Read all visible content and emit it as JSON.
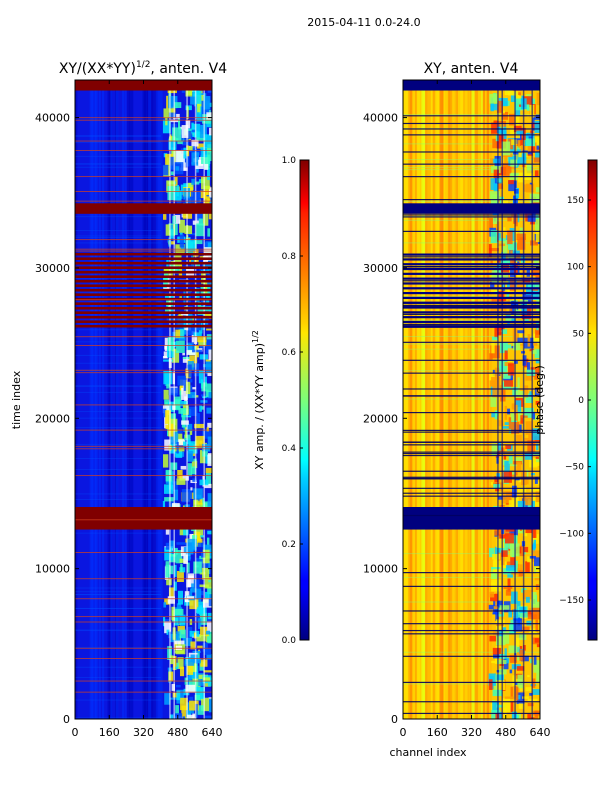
{
  "figure": {
    "suptitle": "2015-04-11 0.0-24.0"
  },
  "chart_data": [
    {
      "type": "heatmap",
      "title_main": "XY/(XX*YY)",
      "title_exp": "1/2",
      "title_tail": ", anten. V4",
      "xlabel": "",
      "ylabel": "time index",
      "xlim": [
        0,
        640
      ],
      "ylim": [
        0,
        42500
      ],
      "xticks": [
        0,
        160,
        320,
        480,
        640
      ],
      "xticklabels": [
        "0",
        "160",
        "320",
        "480",
        "640"
      ],
      "yticks": [
        0,
        10000,
        20000,
        30000,
        40000
      ],
      "yticklabels": [
        "0",
        "10000",
        "20000",
        "30000",
        "40000"
      ],
      "colorbar": {
        "label_main": "XY amp. / (XX*YY amp)",
        "label_exp": "1/2",
        "range": [
          0.0,
          1.0
        ],
        "ticks": [
          0.0,
          0.2,
          0.4,
          0.6,
          0.8,
          1.0
        ],
        "ticklabels": [
          "0.0",
          "0.2",
          "0.4",
          "0.6",
          "0.8",
          "1.0"
        ],
        "colormap": "jet"
      },
      "flagged_time_bands": [
        [
          12600,
          14100
        ],
        [
          33600,
          34300
        ],
        [
          41800,
          42500
        ],
        [
          26000,
          31000
        ]
      ]
    },
    {
      "type": "heatmap",
      "title_main": "XY, anten. V4",
      "title_exp": "",
      "title_tail": "",
      "xlabel": "channel index",
      "ylabel": "",
      "xlim": [
        0,
        640
      ],
      "ylim": [
        0,
        42500
      ],
      "xticks": [
        0,
        160,
        320,
        480,
        640
      ],
      "xticklabels": [
        "0",
        "160",
        "320",
        "480",
        "640"
      ],
      "yticks": [
        0,
        10000,
        20000,
        30000,
        40000
      ],
      "yticklabels": [
        "0",
        "10000",
        "20000",
        "30000",
        "40000"
      ],
      "colorbar": {
        "label_main": "phase (deg.)",
        "label_exp": "",
        "range": [
          -180,
          180
        ],
        "ticks": [
          -150,
          -100,
          -50,
          0,
          50,
          100,
          150
        ],
        "ticklabels": [
          "−150",
          "−100",
          "−50",
          "0",
          "50",
          "100",
          "150"
        ],
        "colormap": "jet"
      },
      "flagged_time_bands": [
        [
          12600,
          14100
        ],
        [
          33600,
          34300
        ],
        [
          41800,
          42500
        ]
      ]
    }
  ],
  "colors": {
    "flag_amp": "#800000",
    "flag_phase": "#00007f"
  }
}
